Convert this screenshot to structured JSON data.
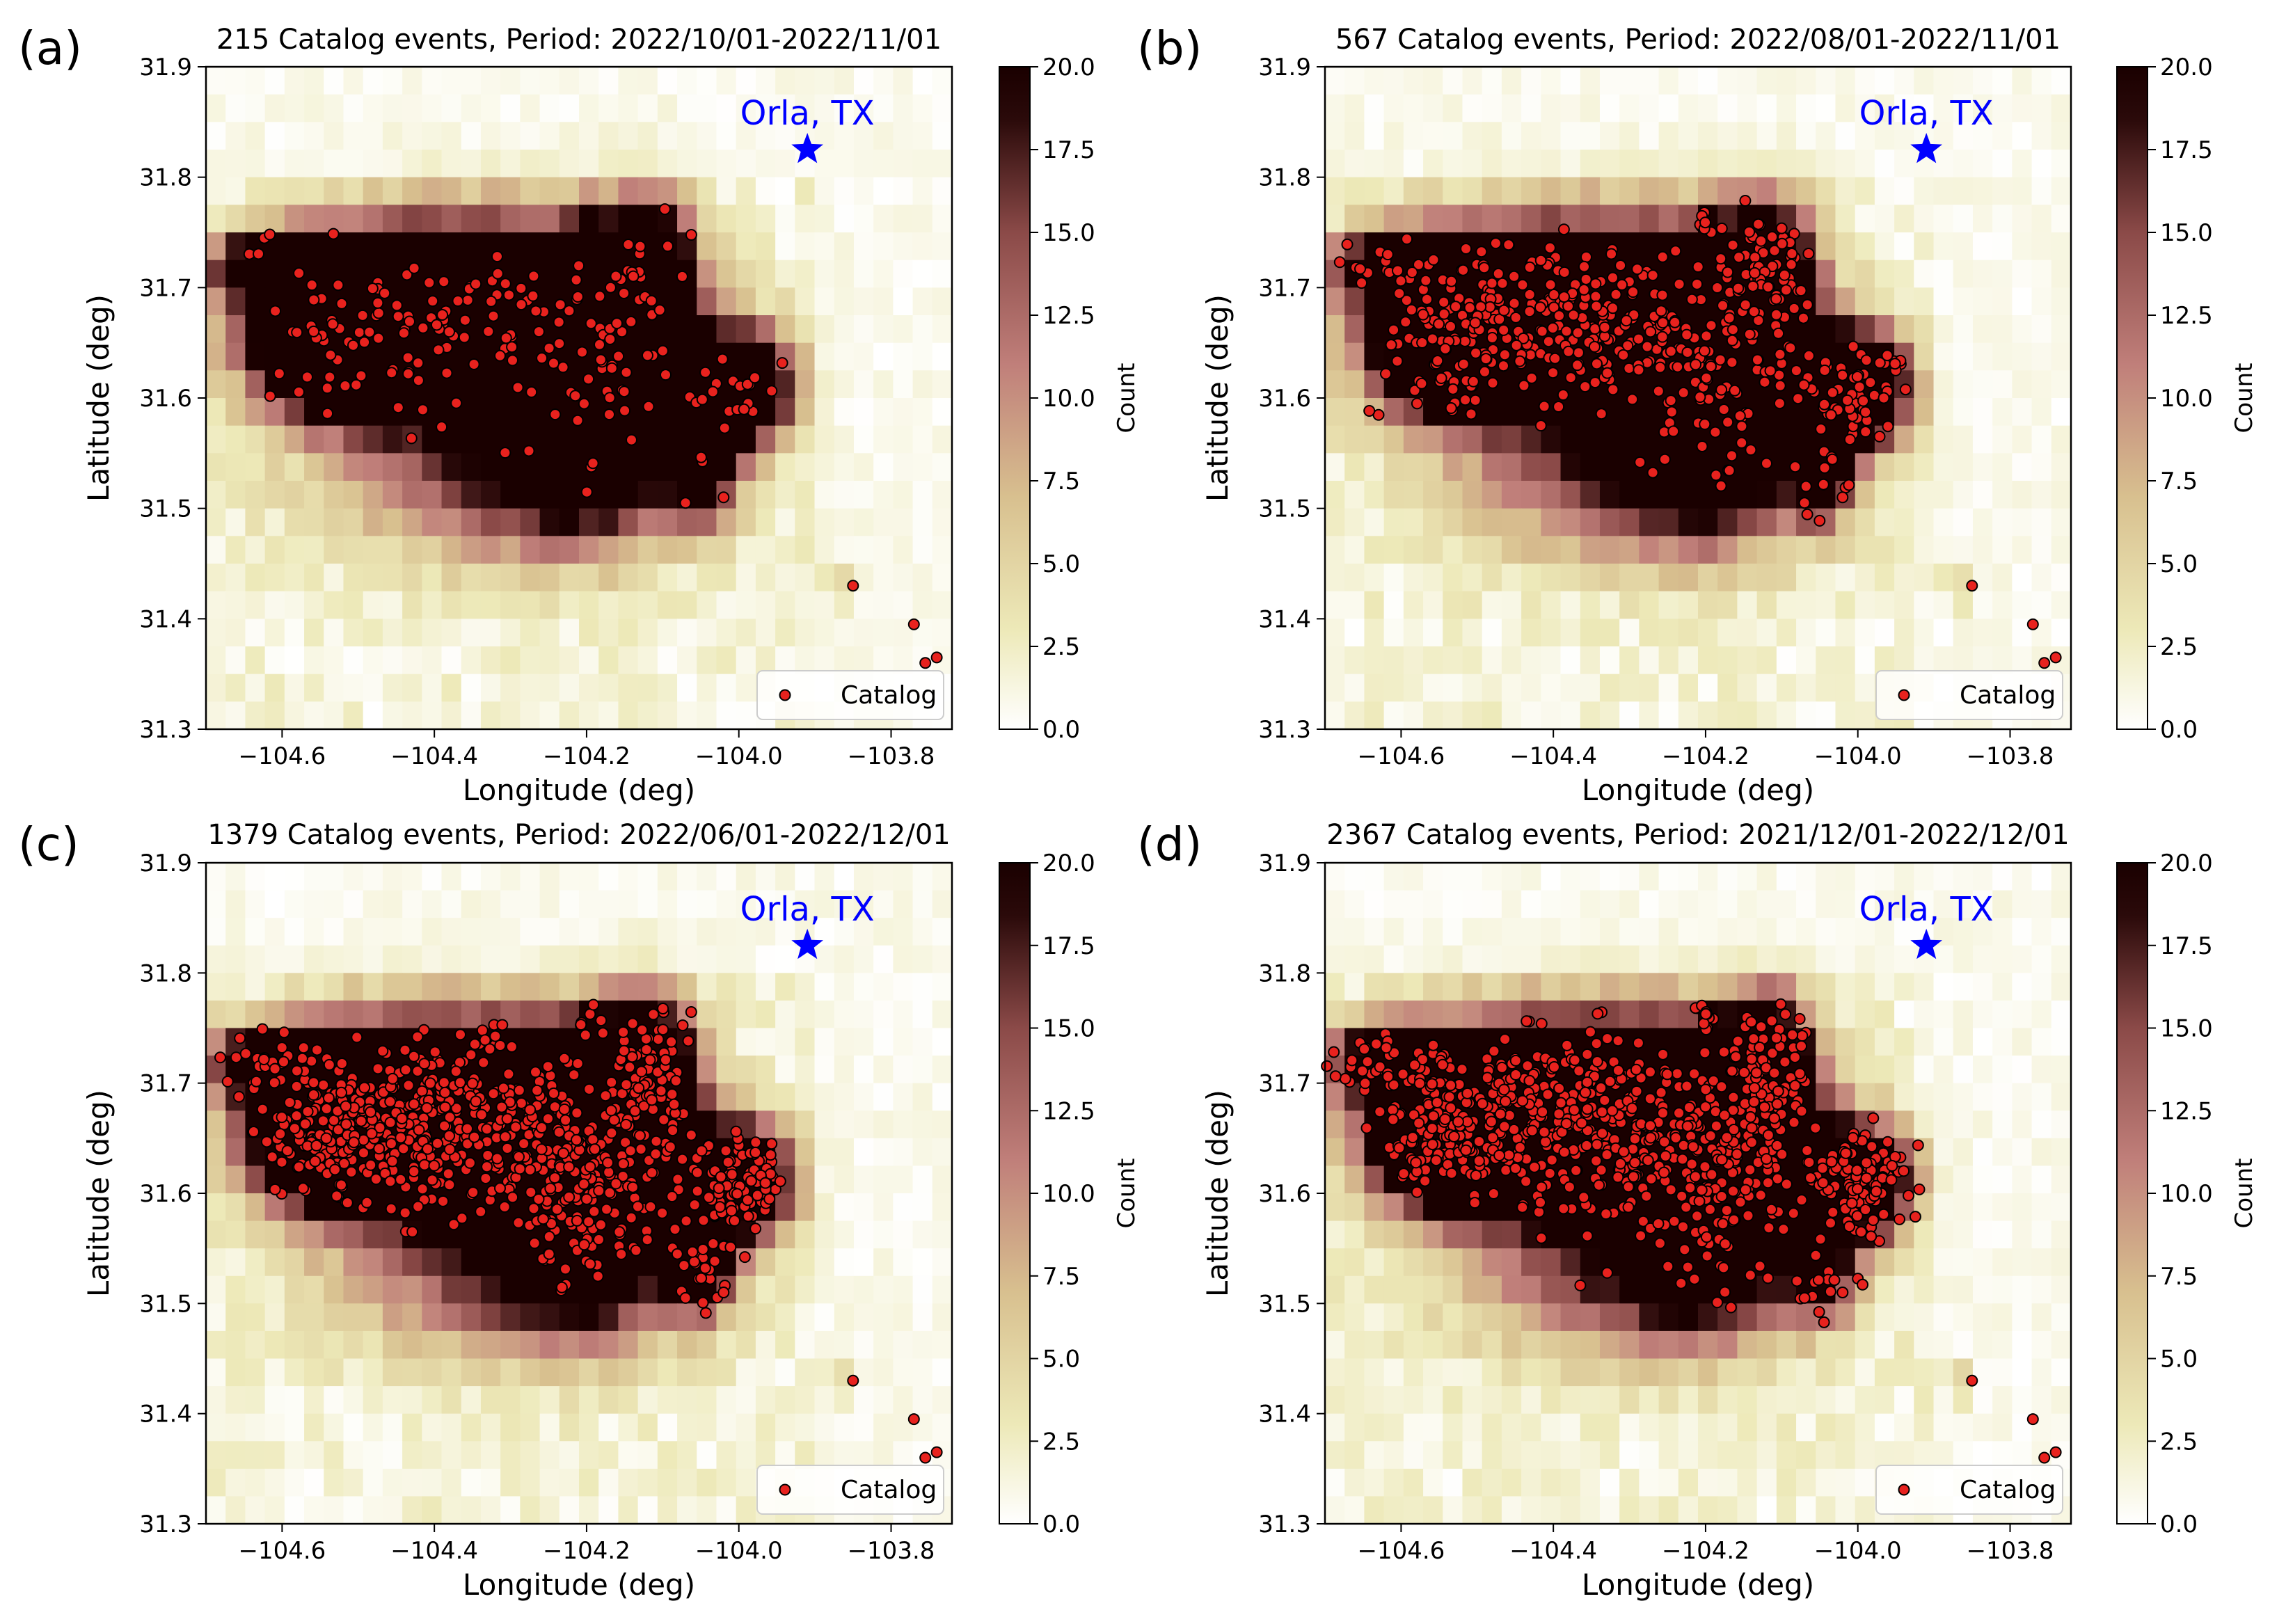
{
  "chart_data": [
    {
      "type": "heatmap",
      "panel_label": "(a)",
      "title": "215 Catalog events, Period: 2022/10/01-2022/11/01",
      "xlabel": "Longitude (deg)",
      "ylabel": "Latitude (deg)",
      "xlim": [
        -104.7,
        -103.72
      ],
      "ylim": [
        31.3,
        31.9
      ],
      "xticks": [
        -104.6,
        -104.4,
        -104.2,
        -104.0,
        -103.8
      ],
      "xticklabels": [
        "−104.6",
        "−104.4",
        "−104.2",
        "−104.0",
        "−103.8"
      ],
      "yticks": [
        31.3,
        31.4,
        31.5,
        31.6,
        31.7,
        31.8,
        31.9
      ],
      "yticklabels": [
        "31.3",
        "31.4",
        "31.5",
        "31.6",
        "31.7",
        "31.8",
        "31.9"
      ],
      "colorbar": {
        "label": "Count",
        "range": [
          0,
          20
        ],
        "ticks": [
          0,
          2.5,
          5,
          7.5,
          10,
          12.5,
          15,
          17.5,
          20
        ],
        "ticklabels": [
          "0.0",
          "2.5",
          "5.0",
          "7.5",
          "10.0",
          "12.5",
          "15.0",
          "17.5",
          "20.0"
        ],
        "colors": [
          "#ffffff",
          "#ede9b8",
          "#d8c08f",
          "#c07f7a",
          "#8b4a48",
          "#2b0a0a",
          "#1a0000"
        ]
      },
      "grid": false,
      "legend": {
        "entries": [
          "Catalog"
        ],
        "placement": "lower-right"
      },
      "annotation": {
        "text": "Orla, TX",
        "x": -103.91,
        "y": 31.825,
        "color": "#0000ff",
        "marker": "star"
      },
      "catalog_count": 215,
      "marker_color": "#e8221e",
      "seed": 11
    },
    {
      "type": "heatmap",
      "panel_label": "(b)",
      "title": "567 Catalog events, Period: 2022/08/01-2022/11/01",
      "xlabel": "Longitude (deg)",
      "ylabel": "Latitude (deg)",
      "xlim": [
        -104.7,
        -103.72
      ],
      "ylim": [
        31.3,
        31.9
      ],
      "xticks": [
        -104.6,
        -104.4,
        -104.2,
        -104.0,
        -103.8
      ],
      "xticklabels": [
        "−104.6",
        "−104.4",
        "−104.2",
        "−104.0",
        "−103.8"
      ],
      "yticks": [
        31.3,
        31.4,
        31.5,
        31.6,
        31.7,
        31.8,
        31.9
      ],
      "yticklabels": [
        "31.3",
        "31.4",
        "31.5",
        "31.6",
        "31.7",
        "31.8",
        "31.9"
      ],
      "colorbar": {
        "label": "Count",
        "range": [
          0,
          20
        ],
        "ticks": [
          0,
          2.5,
          5,
          7.5,
          10,
          12.5,
          15,
          17.5,
          20
        ],
        "ticklabels": [
          "0.0",
          "2.5",
          "5.0",
          "7.5",
          "10.0",
          "12.5",
          "15.0",
          "17.5",
          "20.0"
        ],
        "colors": [
          "#ffffff",
          "#ede9b8",
          "#d8c08f",
          "#c07f7a",
          "#8b4a48",
          "#2b0a0a",
          "#1a0000"
        ]
      },
      "grid": false,
      "legend": {
        "entries": [
          "Catalog"
        ],
        "placement": "lower-right"
      },
      "annotation": {
        "text": "Orla, TX",
        "x": -103.91,
        "y": 31.825,
        "color": "#0000ff",
        "marker": "star"
      },
      "catalog_count": 567,
      "marker_color": "#e8221e",
      "seed": 23
    },
    {
      "type": "heatmap",
      "panel_label": "(c)",
      "title": "1379 Catalog events, Period: 2022/06/01-2022/12/01",
      "xlabel": "Longitude (deg)",
      "ylabel": "Latitude (deg)",
      "xlim": [
        -104.7,
        -103.72
      ],
      "ylim": [
        31.3,
        31.9
      ],
      "xticks": [
        -104.6,
        -104.4,
        -104.2,
        -104.0,
        -103.8
      ],
      "xticklabels": [
        "−104.6",
        "−104.4",
        "−104.2",
        "−104.0",
        "−103.8"
      ],
      "yticks": [
        31.3,
        31.4,
        31.5,
        31.6,
        31.7,
        31.8,
        31.9
      ],
      "yticklabels": [
        "31.3",
        "31.4",
        "31.5",
        "31.6",
        "31.7",
        "31.8",
        "31.9"
      ],
      "colorbar": {
        "label": "Count",
        "range": [
          0,
          20
        ],
        "ticks": [
          0,
          2.5,
          5,
          7.5,
          10,
          12.5,
          15,
          17.5,
          20
        ],
        "ticklabels": [
          "0.0",
          "2.5",
          "5.0",
          "7.5",
          "10.0",
          "12.5",
          "15.0",
          "17.5",
          "20.0"
        ],
        "colors": [
          "#ffffff",
          "#ede9b8",
          "#d8c08f",
          "#c07f7a",
          "#8b4a48",
          "#2b0a0a",
          "#1a0000"
        ]
      },
      "grid": false,
      "legend": {
        "entries": [
          "Catalog"
        ],
        "placement": "lower-right"
      },
      "annotation": {
        "text": "Orla, TX",
        "x": -103.91,
        "y": 31.825,
        "color": "#0000ff",
        "marker": "star"
      },
      "catalog_count": 1379,
      "marker_color": "#e8221e",
      "seed": 37
    },
    {
      "type": "heatmap",
      "panel_label": "(d)",
      "title": "2367 Catalog events, Period: 2021/12/01-2022/12/01",
      "xlabel": "Longitude (deg)",
      "ylabel": "Latitude (deg)",
      "xlim": [
        -104.7,
        -103.72
      ],
      "ylim": [
        31.3,
        31.9
      ],
      "xticks": [
        -104.6,
        -104.4,
        -104.2,
        -104.0,
        -103.8
      ],
      "xticklabels": [
        "−104.6",
        "−104.4",
        "−104.2",
        "−104.0",
        "−103.8"
      ],
      "yticks": [
        31.3,
        31.4,
        31.5,
        31.6,
        31.7,
        31.8,
        31.9
      ],
      "yticklabels": [
        "31.3",
        "31.4",
        "31.5",
        "31.6",
        "31.7",
        "31.8",
        "31.9"
      ],
      "colorbar": {
        "label": "Count",
        "range": [
          0,
          20
        ],
        "ticks": [
          0,
          2.5,
          5,
          7.5,
          10,
          12.5,
          15,
          17.5,
          20
        ],
        "ticklabels": [
          "0.0",
          "2.5",
          "5.0",
          "7.5",
          "10.0",
          "12.5",
          "15.0",
          "17.5",
          "20.0"
        ],
        "colors": [
          "#ffffff",
          "#ede9b8",
          "#d8c08f",
          "#c07f7a",
          "#8b4a48",
          "#2b0a0a",
          "#1a0000"
        ]
      },
      "grid": false,
      "legend": {
        "entries": [
          "Catalog"
        ],
        "placement": "lower-right"
      },
      "annotation": {
        "text": "Orla, TX",
        "x": -103.91,
        "y": 31.825,
        "color": "#0000ff",
        "marker": "star"
      },
      "catalog_count": 2367,
      "marker_color": "#e8221e",
      "seed": 53
    }
  ]
}
